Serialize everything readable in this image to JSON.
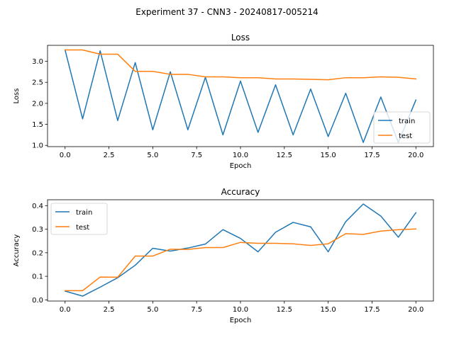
{
  "figure": {
    "title": "Experiment 37 - CNN3 - 20240817-005214"
  },
  "colors": {
    "train": "#1f77b4",
    "test": "#ff7f0e",
    "axes": "#000000",
    "legend_border": "#cccccc"
  },
  "chart_data": [
    {
      "type": "line",
      "title": "Loss",
      "xlabel": "Epoch",
      "ylabel": "Loss",
      "xlim": [
        -1,
        21
      ],
      "ylim": [
        0.97,
        3.38
      ],
      "xticks": [
        0,
        2.5,
        5,
        7.5,
        10,
        12.5,
        15,
        17.5,
        20
      ],
      "xtick_labels": [
        "0.0",
        "2.5",
        "5.0",
        "7.5",
        "10.0",
        "12.5",
        "15.0",
        "17.5",
        "20.0"
      ],
      "yticks": [
        1.0,
        1.5,
        2.0,
        2.5,
        3.0
      ],
      "ytick_labels": [
        "1.0",
        "1.5",
        "2.0",
        "2.5",
        "3.0"
      ],
      "grid": false,
      "legend": "lower-right",
      "x": [
        0,
        1,
        2,
        3,
        4,
        5,
        6,
        7,
        8,
        9,
        10,
        11,
        12,
        13,
        14,
        15,
        16,
        17,
        18,
        19,
        20
      ],
      "series": [
        {
          "name": "train",
          "color": "#1f77b4",
          "values": [
            3.27,
            1.63,
            3.25,
            1.59,
            2.97,
            1.37,
            2.75,
            1.37,
            2.62,
            1.25,
            2.53,
            1.31,
            2.44,
            1.25,
            2.34,
            1.21,
            2.24,
            1.07,
            2.15,
            1.07,
            2.08
          ]
        },
        {
          "name": "test",
          "color": "#ff7f0e",
          "values": [
            3.27,
            3.27,
            3.17,
            3.17,
            2.76,
            2.76,
            2.69,
            2.69,
            2.63,
            2.63,
            2.61,
            2.61,
            2.58,
            2.58,
            2.57,
            2.56,
            2.61,
            2.61,
            2.63,
            2.62,
            2.58
          ]
        }
      ]
    },
    {
      "type": "line",
      "title": "Accuracy",
      "xlabel": "Epoch",
      "ylabel": "Accuracy",
      "xlim": [
        -1,
        21
      ],
      "ylim": [
        -0.005,
        0.425
      ],
      "xticks": [
        0,
        2.5,
        5,
        7.5,
        10,
        12.5,
        15,
        17.5,
        20
      ],
      "xtick_labels": [
        "0.0",
        "2.5",
        "5.0",
        "7.5",
        "10.0",
        "12.5",
        "15.0",
        "17.5",
        "20.0"
      ],
      "yticks": [
        0.0,
        0.1,
        0.2,
        0.3,
        0.4
      ],
      "ytick_labels": [
        "0.0",
        "0.1",
        "0.2",
        "0.3",
        "0.4"
      ],
      "grid": false,
      "legend": "upper-left",
      "x": [
        0,
        1,
        2,
        3,
        4,
        5,
        6,
        7,
        8,
        9,
        10,
        11,
        12,
        13,
        14,
        15,
        16,
        17,
        18,
        19,
        20
      ],
      "series": [
        {
          "name": "train",
          "color": "#1f77b4",
          "values": [
            0.037,
            0.016,
            0.054,
            0.094,
            0.147,
            0.219,
            0.207,
            0.22,
            0.237,
            0.298,
            0.261,
            0.204,
            0.287,
            0.329,
            0.31,
            0.204,
            0.332,
            0.407,
            0.356,
            0.266,
            0.37
          ]
        },
        {
          "name": "test",
          "color": "#ff7f0e",
          "values": [
            0.039,
            0.039,
            0.097,
            0.096,
            0.186,
            0.186,
            0.215,
            0.214,
            0.222,
            0.222,
            0.244,
            0.24,
            0.24,
            0.238,
            0.231,
            0.238,
            0.281,
            0.278,
            0.292,
            0.298,
            0.301
          ]
        }
      ]
    }
  ]
}
